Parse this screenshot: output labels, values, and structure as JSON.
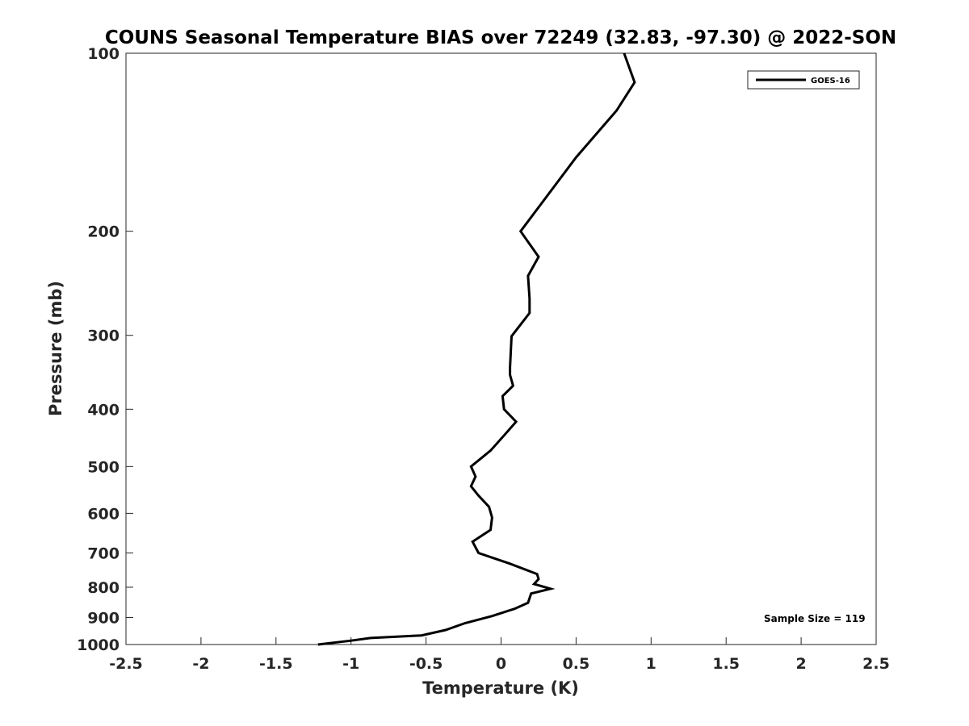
{
  "chart_data": {
    "type": "line",
    "title": "COUNS Seasonal Temperature BIAS over 72249 (32.83, -97.30) @ 2022-SON",
    "xlabel": "Temperature (K)",
    "ylabel": "Pressure (mb)",
    "xlim": [
      -2.5,
      2.5
    ],
    "ylim": [
      100,
      1000
    ],
    "y_scale": "log",
    "y_reversed": true,
    "x_ticks": [
      "-2.5",
      "-2",
      "-1.5",
      "-1",
      "-0.5",
      "0",
      "0.5",
      "1",
      "1.5",
      "2",
      "2.5"
    ],
    "y_ticks": [
      "100",
      "200",
      "300",
      "400",
      "500",
      "600",
      "700",
      "800",
      "900",
      "1000"
    ],
    "grid": false,
    "legend_position": "top-right",
    "annotation": "Sample Size = 119",
    "series": [
      {
        "name": "GOES-16",
        "color": "#000000",
        "x": [
          0.82,
          0.89,
          0.77,
          0.5,
          0.13,
          0.25,
          0.18,
          0.19,
          0.19,
          0.07,
          0.06,
          0.06,
          0.08,
          0.01,
          0.02,
          0.1,
          0.03,
          -0.07,
          -0.2,
          -0.17,
          -0.2,
          -0.15,
          -0.08,
          -0.06,
          -0.07,
          -0.19,
          -0.15,
          0.06,
          0.24,
          0.25,
          0.22,
          0.33,
          0.2,
          0.19,
          0.18,
          0.09,
          -0.06,
          -0.24,
          -0.37,
          -0.53,
          -0.87,
          -1.0,
          -1.22
        ],
        "y": [
          100,
          112,
          125,
          150,
          200,
          221,
          238,
          260,
          275,
          301,
          340,
          350,
          365,
          380,
          400,
          420,
          440,
          470,
          500,
          520,
          540,
          560,
          585,
          610,
          640,
          670,
          700,
          730,
          760,
          775,
          790,
          805,
          820,
          835,
          850,
          870,
          895,
          920,
          945,
          965,
          975,
          985,
          1000
        ]
      }
    ]
  }
}
